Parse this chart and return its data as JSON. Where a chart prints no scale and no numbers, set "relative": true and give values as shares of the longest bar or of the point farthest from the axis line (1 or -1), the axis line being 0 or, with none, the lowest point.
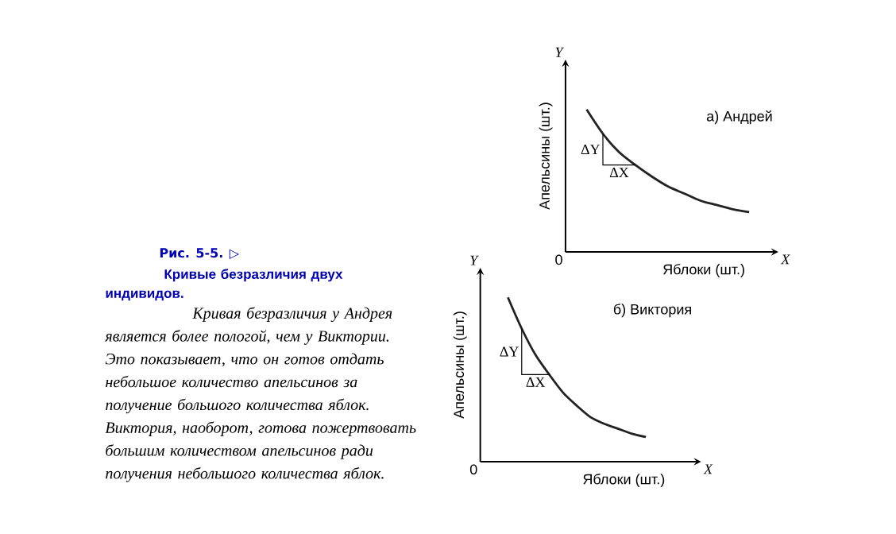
{
  "chart_data": [
    {
      "type": "other",
      "title": "Рис. 5-5. ▷",
      "subtitle": "Кривые безразличия двух индивидов.",
      "annotations": [
        "Кривая безразличия у Андрея является более пологой, чем у Виктории. Это показывает, что он готов отдать небольшое количество апельсинов за получение большого количества яблок. Виктория, наоборот, готова пожертвовать большим количеством апельсинов ради получения небольшого количества яблок."
      ]
    },
    {
      "type": "line",
      "title": "а) Андрей",
      "xlabel": "Яблоки (шт.)",
      "ylabel": "Апельсины (шт.)",
      "relative": true,
      "color": "#222222",
      "categories": [
        null,
        null,
        null,
        null,
        null,
        null,
        null,
        null,
        null,
        null,
        null
      ],
      "values": [
        1,
        0.83,
        0.7,
        0.61,
        0.53,
        0.46,
        0.41,
        0.36,
        0.33,
        0.3,
        0.28
      ],
      "annotations": [
        "0",
        "X",
        "Y",
        "ΔY",
        "ΔX"
      ]
    },
    {
      "type": "line",
      "title": "б) Виктория",
      "xlabel": "Яблоки (шт.)",
      "ylabel": "Апельсины (шт.)",
      "relative": true,
      "color": "#222222",
      "categories": [
        null,
        null,
        null,
        null,
        null,
        null,
        null,
        null,
        null,
        null,
        null
      ],
      "values": [
        1,
        0.81,
        0.65,
        0.53,
        0.42,
        0.34,
        0.27,
        0.23,
        0.2,
        0.17,
        0.15
      ],
      "annotations": [
        "0",
        "X",
        "Y",
        "ΔY",
        "ΔX"
      ]
    }
  ]
}
